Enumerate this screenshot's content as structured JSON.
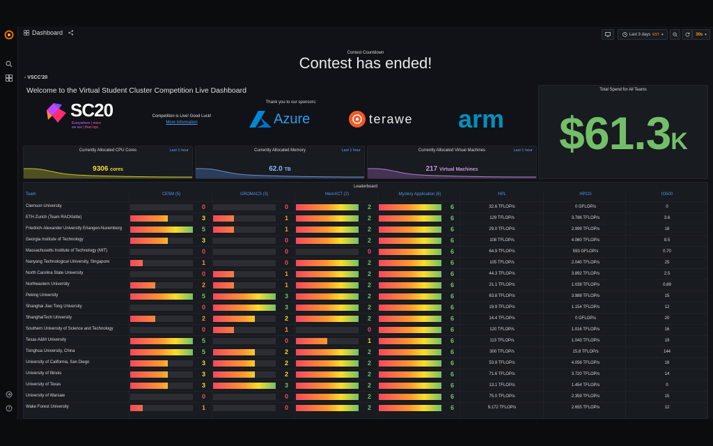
{
  "topbar": {
    "title": "Dashboard",
    "time_range": "Last 3 days",
    "time_zone": "EST",
    "refresh": "30s"
  },
  "countdown": {
    "label": "Contest Countdown",
    "message": "Contest has ended!"
  },
  "row_label": "- VSCC'20",
  "welcome": {
    "title": "Welcome to the Virtual Student Cluster Competition Live Dashboard",
    "sc_logo": "SC20",
    "sc_tagline_1": "Everywhere",
    "sc_tagline_1b": "more",
    "sc_tagline_2": "we are",
    "sc_tagline_2b": "than hpc.",
    "live_text": "Competition is Live! Good Luck!",
    "more_info": "More Information",
    "thanks": "Thank you to our sponsors:",
    "sponsors": [
      "Azure",
      "terawe",
      "arm"
    ]
  },
  "stats": {
    "cpu": {
      "title": "Currently Allocated CPU Cores",
      "range": "Last 1 hour",
      "value": "9306",
      "unit": "cores",
      "color": "#fade2a"
    },
    "memory": {
      "title": "Currently Allocated Memory",
      "range": "Last 1 hour",
      "value": "62.0",
      "unit": "TB",
      "color": "#8ab8ff"
    },
    "vms": {
      "title": "Currently Allocated Virtual Machines",
      "range": "Last 1 hour",
      "value": "217",
      "unit": "Virtual Machines",
      "color": "#ca95e5"
    }
  },
  "spend": {
    "title": "Total Spend for All Teams",
    "value": "$61.3",
    "suffix": "K"
  },
  "leaderboard": {
    "title": "Leaderboard",
    "columns": [
      "Team",
      "CESM (5)",
      "GROMACS (3)",
      "MemXCT (2)",
      "Mystery Application (6)",
      "HPL",
      "HPCG",
      "IO500"
    ],
    "max": [
      5,
      3,
      2,
      6
    ],
    "rows": [
      {
        "team": "Clemson University",
        "cesm": 0,
        "gromacs": 0,
        "memxct": 2,
        "mystery": 6,
        "hpl": "32.6 TFLOP/s",
        "hpcg": "0 GFLOP/s",
        "io500": "0"
      },
      {
        "team": "ETH Zurich (Team RACKlette)",
        "cesm": 3,
        "gromacs": 1,
        "memxct": 2,
        "mystery": 6,
        "hpl": "129 TFLOP/s",
        "hpcg": "3.786 TFLOP/s",
        "io500": "3.6"
      },
      {
        "team": "Friedrich-Alexander University Erlangen-Nuremberg",
        "cesm": 5,
        "gromacs": 1,
        "memxct": 2,
        "mystery": 6,
        "hpl": "29.0 TFLOP/s",
        "hpcg": "2.999 TFLOP/s",
        "io500": "18"
      },
      {
        "team": "Georgia Institute of Technology",
        "cesm": 3,
        "gromacs": 0,
        "memxct": 2,
        "mystery": 6,
        "hpl": "108 TFLOP/s",
        "hpcg": "4.060 TFLOP/s",
        "io500": "8.5"
      },
      {
        "team": "Massachusetts Institute of Technology (MIT)",
        "cesm": 0,
        "gromacs": 0,
        "memxct": 0,
        "mystery": 6,
        "hpl": "64.9 TFLOP/s",
        "hpcg": "593 GFLOP/s",
        "io500": "0.70"
      },
      {
        "team": "Nanyang Technological University, Singapore",
        "cesm": 1,
        "gromacs": 0,
        "memxct": 2,
        "mystery": 6,
        "hpl": "105 TFLOP/s",
        "hpcg": "2.040 TFLOP/s",
        "io500": "25"
      },
      {
        "team": "North Carolina State University",
        "cesm": 0,
        "gromacs": 1,
        "memxct": 2,
        "mystery": 6,
        "hpl": "44.3 TFLOP/s",
        "hpcg": "3.892 TFLOP/s",
        "io500": "2.5"
      },
      {
        "team": "Northeastern University",
        "cesm": 2,
        "gromacs": 1,
        "memxct": 2,
        "mystery": 6,
        "hpl": "21.1 TFLOP/s",
        "hpcg": "1.038 TFLOP/s",
        "io500": "0.89"
      },
      {
        "team": "Peking University",
        "cesm": 5,
        "gromacs": 3,
        "memxct": 2,
        "mystery": 6,
        "hpl": "63.8 TFLOP/s",
        "hpcg": "3.988 TFLOP/s",
        "io500": "15"
      },
      {
        "team": "Shanghai Jiao Tong University",
        "cesm": 0,
        "gromacs": 3,
        "memxct": 2,
        "mystery": 6,
        "hpl": "19.9 TFLOP/s",
        "hpcg": "1.154 TFLOP/s",
        "io500": "12"
      },
      {
        "team": "ShanghaiTech University",
        "cesm": 2,
        "gromacs": 2,
        "memxct": 2,
        "mystery": 6,
        "hpl": "14.4 TFLOP/s",
        "hpcg": "0 GFLOP/s",
        "io500": "20"
      },
      {
        "team": "Southern University of Science and Technology",
        "cesm": 0,
        "gromacs": 1,
        "memxct": 0,
        "mystery": 6,
        "hpl": "120 TFLOP/s",
        "hpcg": "1.016 TFLOP/s",
        "io500": "16"
      },
      {
        "team": "Texas A&M University",
        "cesm": 5,
        "gromacs": 0,
        "memxct": 1,
        "mystery": 6,
        "hpl": "113 TFLOP/s",
        "hpcg": "1.043 TFLOP/s",
        "io500": "19"
      },
      {
        "team": "Tsinghua University, China",
        "cesm": 5,
        "gromacs": 2,
        "memxct": 2,
        "mystery": 6,
        "hpl": "300 TFLOP/s",
        "hpcg": "15.8 TFLOP/s",
        "io500": "144"
      },
      {
        "team": "University of California, San Diego",
        "cesm": 3,
        "gromacs": 2,
        "memxct": 2,
        "mystery": 6,
        "hpl": "53.9 TFLOP/s",
        "hpcg": "4.056 TFLOP/s",
        "io500": "16"
      },
      {
        "team": "University of Illinois",
        "cesm": 3,
        "gromacs": 2,
        "memxct": 2,
        "mystery": 6,
        "hpl": "71.6 TFLOP/s",
        "hpcg": "3.720 TFLOP/s",
        "io500": "14"
      },
      {
        "team": "University of Texas",
        "cesm": 3,
        "gromacs": 3,
        "memxct": 2,
        "mystery": 6,
        "hpl": "13.1 TFLOP/s",
        "hpcg": "1.454 TFLOP/s",
        "io500": "0"
      },
      {
        "team": "University of Warsaw",
        "cesm": 0,
        "gromacs": 0,
        "memxct": 2,
        "mystery": 6,
        "hpl": "75.0 TFLOP/s",
        "hpcg": "2.359 TFLOP/s",
        "io500": "15"
      },
      {
        "team": "Wake Forest University",
        "cesm": 1,
        "gromacs": 0,
        "memxct": 2,
        "mystery": 6,
        "hpl": "9.172 TFLOP/s",
        "hpcg": "2.655 TFLOP/s",
        "io500": "12"
      }
    ]
  },
  "colors": {
    "zero": "#f2495c",
    "low": "#ff9830",
    "mid": "#fade2a",
    "full": "#73bf69",
    "accent": "#5794f2"
  }
}
